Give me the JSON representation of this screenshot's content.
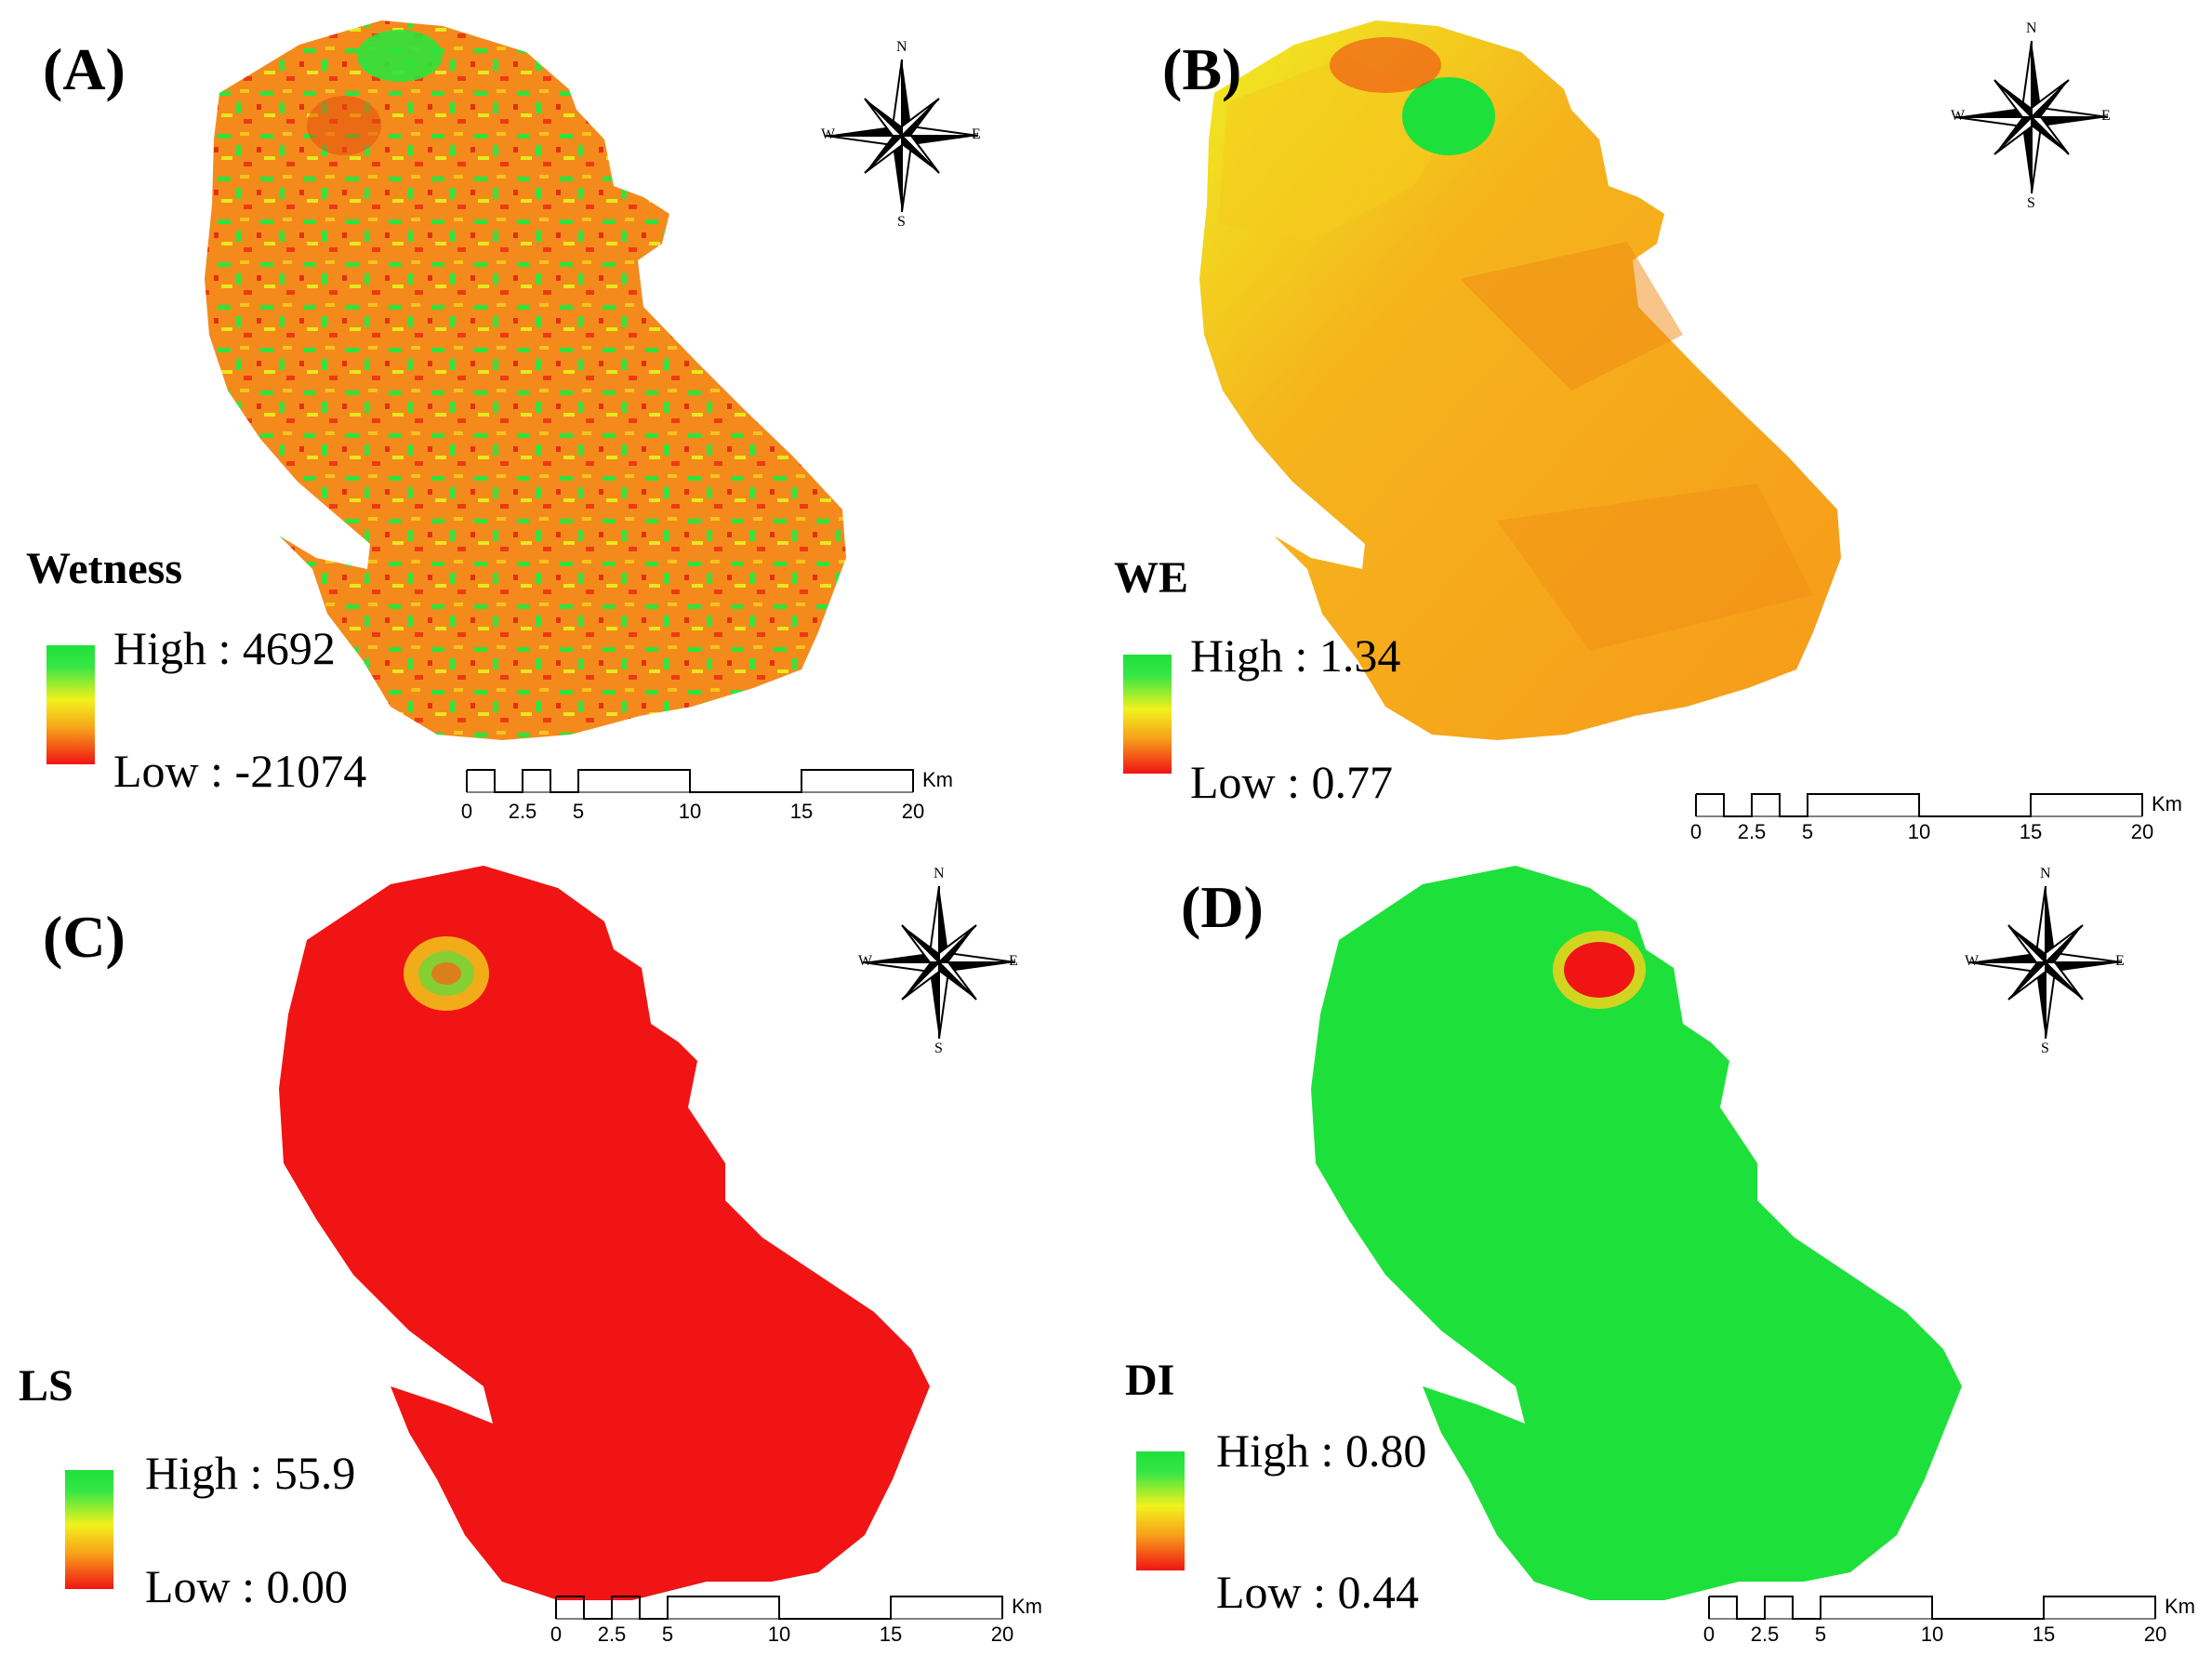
{
  "colors": {
    "green": "#1ee03a",
    "yellow": "#f2f21c",
    "orange": "#f7a11a",
    "red": "#f01414"
  },
  "compass": {
    "n": "N",
    "s": "S",
    "e": "E",
    "w": "W",
    "icon": "compass-rose-icon"
  },
  "scalebar": {
    "ticks": [
      "0",
      "2.5",
      "5",
      "10",
      "15",
      "20"
    ],
    "unit": "Km"
  },
  "panels": [
    {
      "label": "(A)",
      "title": "Wetness",
      "high": "High : 4692",
      "low": "Low : -21074",
      "dominant": "orange-mixed"
    },
    {
      "label": "(B)",
      "title": "WE",
      "high": "High : 1.34",
      "low": "Low : 0.77",
      "dominant": "orange-yellow"
    },
    {
      "label": "(C)",
      "title": "LS",
      "high": "High : 55.9",
      "low": "Low : 0.00",
      "dominant": "red"
    },
    {
      "label": "(D)",
      "title": "DI",
      "high": "High : 0.80",
      "low": "Low : 0.44",
      "dominant": "green"
    }
  ]
}
